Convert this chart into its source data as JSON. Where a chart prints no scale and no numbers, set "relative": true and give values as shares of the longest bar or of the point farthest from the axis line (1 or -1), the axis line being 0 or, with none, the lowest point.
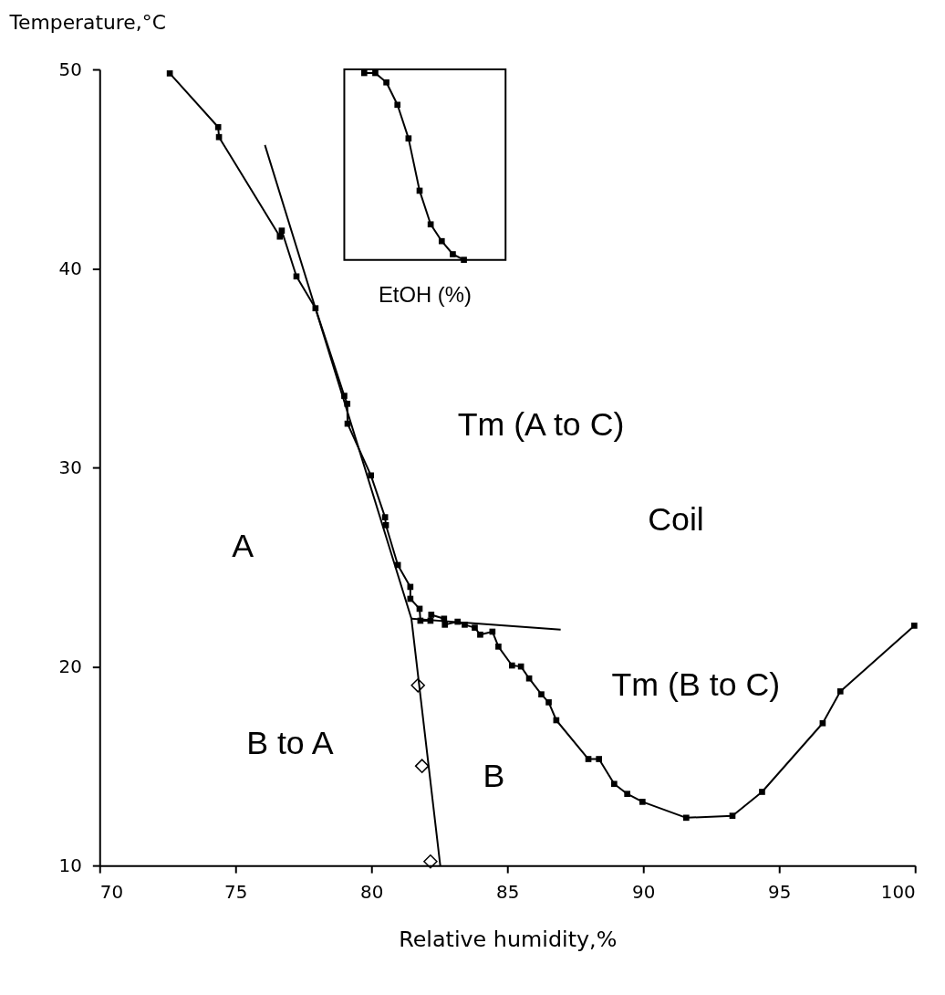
{
  "chart_data": [
    {
      "type": "line",
      "xlabel": "Relative humidity,%",
      "ylabel": "Temperature,°C",
      "xlim": [
        70,
        100
      ],
      "ylim": [
        10,
        50
      ],
      "xticks": [
        70,
        75,
        80,
        85,
        90,
        95,
        100
      ],
      "yticks": [
        10,
        20,
        30,
        40,
        50
      ],
      "grid": false,
      "series": [
        {
          "type": "line",
          "marker": "square",
          "line_style": "solid",
          "color": "#000000",
          "x": [
            72.58,
            74.36,
            74.39,
            76.63,
            76.7,
            77.24,
            77.94,
            79.0,
            79.11,
            79.12,
            79.98,
            80.5,
            80.53,
            80.97,
            81.43,
            81.43,
            81.77,
            81.8,
            82.17,
            82.2,
            82.67,
            82.7,
            83.17,
            83.43,
            83.8,
            84.0,
            84.45,
            84.67,
            85.17,
            85.5,
            85.8,
            86.25,
            86.52,
            86.8,
            87.98,
            88.37,
            88.93,
            89.41,
            89.97,
            91.58,
            93.28,
            94.37,
            96.6,
            97.25,
            99.97
          ],
          "values": [
            49.8,
            47.1,
            46.6,
            41.6,
            41.9,
            39.6,
            38.0,
            33.6,
            33.2,
            32.2,
            29.6,
            27.5,
            27.1,
            25.1,
            24.0,
            23.4,
            22.9,
            22.3,
            22.3,
            22.6,
            22.4,
            22.1,
            22.25,
            22.1,
            21.95,
            21.6,
            21.75,
            21.0,
            20.05,
            20.0,
            19.4,
            18.6,
            18.2,
            17.3,
            15.35,
            15.35,
            14.1,
            13.6,
            13.2,
            12.4,
            12.5,
            13.7,
            17.15,
            18.75,
            22.05
          ]
        },
        {
          "type": "line",
          "marker": "none",
          "line_style": "solid",
          "color": "#000000",
          "x": [
            76.08,
            81.47,
            82.53
          ],
          "values": [
            46.2,
            22.4,
            10.0
          ]
        },
        {
          "type": "line",
          "marker": "none",
          "line_style": "solid",
          "color": "#000000",
          "x": [
            81.47,
            86.96
          ],
          "values": [
            22.4,
            21.85
          ]
        },
        {
          "type": "scatter",
          "marker": "diamond",
          "color": "#000000",
          "x": [
            81.71,
            81.86,
            82.17
          ],
          "values": [
            19.05,
            15.0,
            10.2
          ]
        }
      ],
      "annotations": [
        "Tm (A to C)",
        "Coil",
        "A",
        "Tm (B to C)",
        "B to A",
        "B"
      ]
    },
    {
      "type": "line",
      "relative": true,
      "xlabel": "EtOH (%)",
      "marker": "square",
      "color": "#000000",
      "categories": [
        null,
        null,
        null,
        null,
        null,
        null,
        null,
        null,
        null,
        null
      ],
      "values": [
        1.0,
        1.0,
        0.95,
        0.83,
        0.65,
        0.37,
        0.19,
        0.1,
        0.03,
        0.0
      ]
    }
  ]
}
